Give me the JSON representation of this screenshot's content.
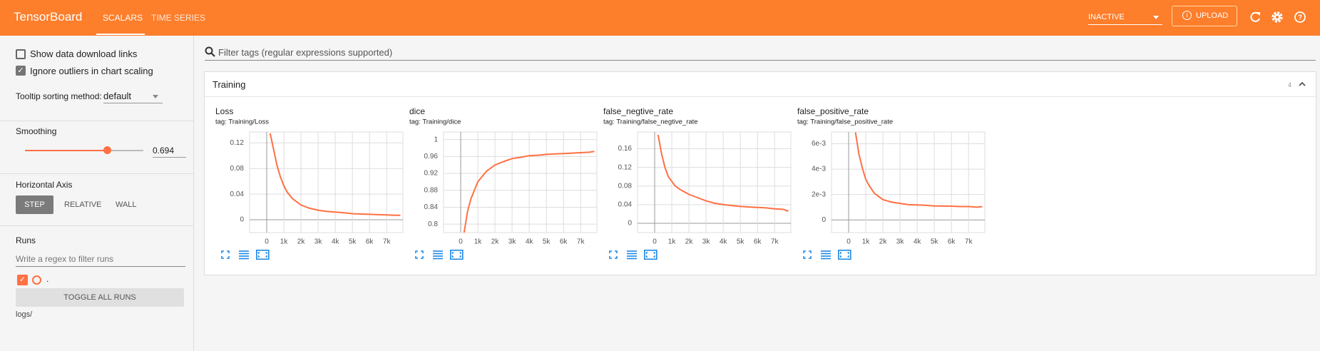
{
  "header": {
    "brand": "TensorBoard",
    "tabs": [
      "SCALARS",
      "TIME SERIES"
    ],
    "status": "INACTIVE",
    "upload": "UPLOAD"
  },
  "sidebar": {
    "show_download": "Show data download links",
    "ignore_outliers": "Ignore outliers in chart scaling",
    "tooltip_label": "Tooltip sorting method:",
    "tooltip_value": "default",
    "smoothing_label": "Smoothing",
    "smoothing_value": 0.694,
    "axis_label": "Horizontal Axis",
    "axis_options": [
      "STEP",
      "RELATIVE",
      "WALL"
    ],
    "runs_label": "Runs",
    "runs_filter": "Write a regex to filter runs",
    "run_name": ".",
    "toggle": "TOGGLE ALL RUNS",
    "logdir": "logs/"
  },
  "search": "Filter tags (regular expressions supported)",
  "section": {
    "title": "Training",
    "count": 4
  },
  "chart_data": [
    {
      "type": "line",
      "title": "Loss",
      "subtitle": "tag: Training/Loss",
      "color": "#ff7043",
      "x": [
        200,
        400,
        600,
        800,
        1000,
        1200,
        1500,
        2000,
        2500,
        3000,
        3500,
        4000,
        4500,
        5000,
        5500,
        6000,
        6500,
        7000,
        7500,
        7800
      ],
      "values": [
        0.135,
        0.11,
        0.085,
        0.067,
        0.053,
        0.043,
        0.033,
        0.023,
        0.018,
        0.015,
        0.013,
        0.012,
        0.011,
        0.0095,
        0.009,
        0.0085,
        0.008,
        0.0075,
        0.007,
        0.007
      ],
      "xlim": [
        -1000,
        7950
      ],
      "ylim": [
        -0.02,
        0.137
      ],
      "xticks": [
        0,
        {
          "value": 1000,
          "label": "1k"
        },
        {
          "value": 2000,
          "label": "2k"
        },
        {
          "value": 3000,
          "label": "3k"
        },
        {
          "value": 4000,
          "label": "4k"
        },
        {
          "value": 5000,
          "label": "5k"
        },
        {
          "value": 6000,
          "label": "6k"
        },
        {
          "value": 7000,
          "label": "7k"
        }
      ],
      "yticks": [
        0,
        0.04,
        0.08,
        0.12
      ],
      "grid": true
    },
    {
      "type": "line",
      "title": "dice",
      "subtitle": "tag: Training/dice",
      "color": "#ff7043",
      "x": [
        200,
        400,
        600,
        800,
        1000,
        1200,
        1500,
        2000,
        2500,
        3000,
        3500,
        4000,
        4500,
        5000,
        5500,
        6000,
        6500,
        7000,
        7500,
        7800
      ],
      "values": [
        0.78,
        0.83,
        0.86,
        0.88,
        0.9,
        0.91,
        0.925,
        0.94,
        0.948,
        0.955,
        0.958,
        0.962,
        0.963,
        0.965,
        0.966,
        0.967,
        0.968,
        0.969,
        0.97,
        0.972
      ],
      "xlim": [
        -1000,
        7950
      ],
      "ylim": [
        0.78,
        1.018
      ],
      "xticks": [
        0,
        {
          "value": 1000,
          "label": "1k"
        },
        {
          "value": 2000,
          "label": "2k"
        },
        {
          "value": 3000,
          "label": "3k"
        },
        {
          "value": 4000,
          "label": "4k"
        },
        {
          "value": 5000,
          "label": "5k"
        },
        {
          "value": 6000,
          "label": "6k"
        },
        {
          "value": 7000,
          "label": "7k"
        }
      ],
      "yticks": [
        0.8,
        0.84,
        0.88,
        0.92,
        0.96,
        1
      ],
      "grid": true
    },
    {
      "type": "line",
      "title": "false_negtive_rate",
      "subtitle": "tag: Training/false_negtive_rate",
      "color": "#ff7043",
      "x": [
        200,
        400,
        600,
        800,
        1000,
        1200,
        1500,
        2000,
        2500,
        3000,
        3500,
        4000,
        4500,
        5000,
        5500,
        6000,
        6500,
        7000,
        7500,
        7800
      ],
      "values": [
        0.19,
        0.15,
        0.12,
        0.1,
        0.09,
        0.08,
        0.072,
        0.062,
        0.055,
        0.048,
        0.043,
        0.04,
        0.038,
        0.036,
        0.035,
        0.034,
        0.033,
        0.031,
        0.03,
        0.026
      ],
      "xlim": [
        -1000,
        7950
      ],
      "ylim": [
        -0.02,
        0.196
      ],
      "xticks": [
        0,
        {
          "value": 1000,
          "label": "1k"
        },
        {
          "value": 2000,
          "label": "2k"
        },
        {
          "value": 3000,
          "label": "3k"
        },
        {
          "value": 4000,
          "label": "4k"
        },
        {
          "value": 5000,
          "label": "5k"
        },
        {
          "value": 6000,
          "label": "6k"
        },
        {
          "value": 7000,
          "label": "7k"
        }
      ],
      "yticks": [
        0,
        0.04,
        0.08,
        0.12,
        0.16
      ],
      "grid": true
    },
    {
      "type": "line",
      "title": "false_positive_rate",
      "subtitle": "tag: Training/false_positive_rate",
      "color": "#ff7043",
      "x": [
        400,
        600,
        800,
        1000,
        1200,
        1500,
        2000,
        2500,
        3000,
        3500,
        4000,
        4500,
        5000,
        5500,
        6000,
        6500,
        7000,
        7500,
        7800
      ],
      "values": [
        0.0069,
        0.0052,
        0.0041,
        0.0032,
        0.0027,
        0.0021,
        0.0016,
        0.0014,
        0.0013,
        0.0012,
        0.00118,
        0.00115,
        0.0011,
        0.0011,
        0.00108,
        0.00105,
        0.00105,
        0.001,
        0.00105
      ],
      "xlim": [
        -1000,
        7950
      ],
      "ylim": [
        -0.001,
        0.00693
      ],
      "xticks": [
        0,
        {
          "value": 1000,
          "label": "1k"
        },
        {
          "value": 2000,
          "label": "2k"
        },
        {
          "value": 3000,
          "label": "3k"
        },
        {
          "value": 4000,
          "label": "4k"
        },
        {
          "value": 5000,
          "label": "5k"
        },
        {
          "value": 6000,
          "label": "6k"
        },
        {
          "value": 7000,
          "label": "7k"
        }
      ],
      "yticks": [
        0,
        {
          "value": 0.002,
          "label": "2e-3"
        },
        {
          "value": 0.004,
          "label": "4e-3"
        },
        {
          "value": 0.006,
          "label": "6e-3"
        }
      ],
      "grid": true
    }
  ]
}
